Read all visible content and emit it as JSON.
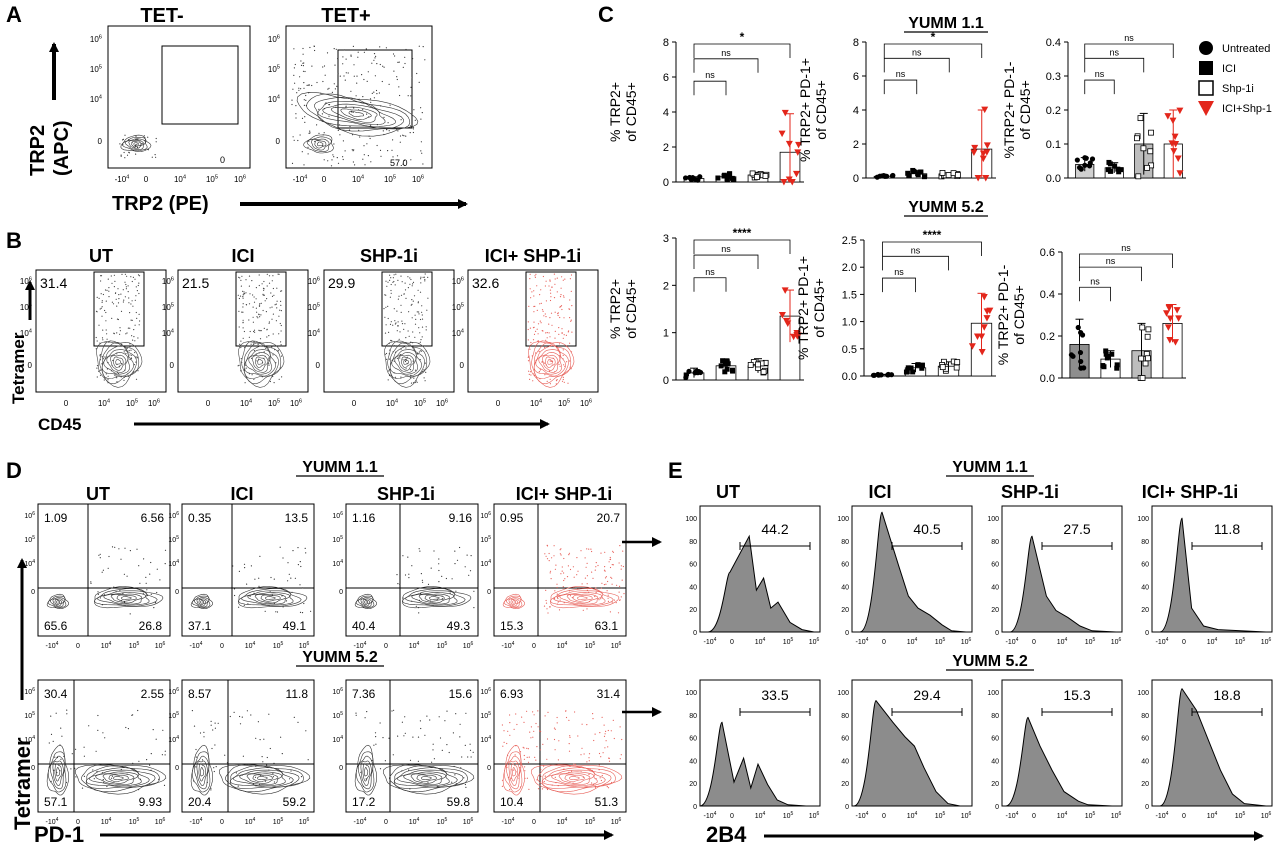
{
  "panel_labels": [
    "A",
    "B",
    "C",
    "D",
    "E"
  ],
  "panelA": {
    "titles": [
      "TET-",
      "TET+"
    ],
    "ylabel_lines": [
      "TRP2",
      "(APC)"
    ],
    "xlabel": "TRP2 (PE)",
    "gate_values": [
      "0",
      "57.0"
    ],
    "yticks": [
      "10^6",
      "10^5",
      "10^4",
      "0"
    ],
    "xticks": [
      "-10^4",
      "0",
      "10^4",
      "10^5",
      "10^6"
    ]
  },
  "panelB": {
    "titles": [
      "UT",
      "ICI",
      "SHP-1i",
      "ICI+ SHP-1i"
    ],
    "values": [
      "31.4",
      "21.5",
      "29.9",
      "32.6"
    ],
    "ylabel": "Tetramer",
    "xlabel": "CD45",
    "yticks": [
      "10^6",
      "10^5",
      "10^4",
      "0"
    ],
    "xticks": [
      "0",
      "10^4",
      "10^5",
      "10^6"
    ]
  },
  "panelC": {
    "section_titles": [
      "YUMM 1.1",
      "YUMM 5.2"
    ],
    "legend": [
      {
        "label": "Untreated",
        "marker": "filled-circle",
        "color": "#000000"
      },
      {
        "label": "ICI",
        "marker": "filled-square",
        "color": "#000000"
      },
      {
        "label": "Shp-1i",
        "marker": "open-square",
        "color": "#000000"
      },
      {
        "label": "ICI+Shp-1",
        "marker": "triangle-down",
        "color": "#e3261b"
      }
    ],
    "chart_data": [
      {
        "type": "bar",
        "section": "YUMM 1.1",
        "ylabel_lines": [
          "% TRP2+",
          "of CD45+"
        ],
        "ylim": [
          0,
          8
        ],
        "yticks": [
          "0",
          "2",
          "4",
          "6",
          "8"
        ],
        "categories": [
          "Untreated",
          "ICI",
          "Shp-1i",
          "ICI+Shp-1"
        ],
        "values": [
          0.2,
          0.3,
          0.4,
          1.7
        ],
        "errors": [
          0.1,
          0.2,
          0.15,
          2.2
        ],
        "significance": [
          "ns",
          "ns",
          "*"
        ]
      },
      {
        "type": "bar",
        "section": "YUMM 1.1",
        "ylabel_lines": [
          "% TRP2+ PD-1+",
          "of CD45+"
        ],
        "ylim": [
          0,
          8
        ],
        "yticks": [
          "0",
          "2",
          "4",
          "6",
          "8"
        ],
        "categories": [
          "Untreated",
          "ICI",
          "Shp-1i",
          "ICI+Shp-1"
        ],
        "values": [
          0.1,
          0.25,
          0.2,
          1.7
        ],
        "errors": [
          0.05,
          0.2,
          0.1,
          2.3
        ],
        "significance": [
          "ns",
          "ns",
          "*"
        ]
      },
      {
        "type": "bar",
        "section": "YUMM 1.1",
        "ylabel_lines": [
          "%TRP2+ PD-1-",
          "of CD45+"
        ],
        "ylim": [
          0,
          0.4
        ],
        "yticks": [
          "0.0",
          "0.1",
          "0.2",
          "0.3",
          "0.4"
        ],
        "categories": [
          "Untreated",
          "ICI",
          "Shp-1i",
          "ICI+Shp-1"
        ],
        "values": [
          0.04,
          0.03,
          0.1,
          0.1
        ],
        "errors": [
          0.02,
          0.015,
          0.09,
          0.1
        ],
        "significance": [
          "ns",
          "ns",
          "ns"
        ]
      },
      {
        "type": "bar",
        "section": "YUMM 5.2",
        "ylabel_lines": [
          "% TRP2+",
          "of CD45+"
        ],
        "ylim": [
          0,
          3
        ],
        "yticks": [
          "0",
          "1",
          "2",
          "3"
        ],
        "categories": [
          "Untreated",
          "ICI",
          "Shp-1i",
          "ICI+Shp-1"
        ],
        "values": [
          0.15,
          0.3,
          0.3,
          1.35
        ],
        "errors": [
          0.1,
          0.12,
          0.15,
          0.55
        ],
        "significance": [
          "ns",
          "ns",
          "****"
        ]
      },
      {
        "type": "bar",
        "section": "YUMM 5.2",
        "ylabel_lines": [
          "% TRP2+ PD-1+",
          "of CD45+"
        ],
        "ylim": [
          0,
          2.5
        ],
        "yticks": [
          "0.0",
          "0.5",
          "1.0",
          "1.5",
          "2.0",
          "2.5"
        ],
        "categories": [
          "Untreated",
          "ICI",
          "Shp-1i",
          "ICI+Shp-1"
        ],
        "values": [
          0.02,
          0.15,
          0.18,
          0.97
        ],
        "errors": [
          0.01,
          0.08,
          0.08,
          0.55
        ],
        "significance": [
          "ns",
          "ns",
          "****"
        ]
      },
      {
        "type": "bar",
        "section": "YUMM 5.2",
        "ylabel_lines": [
          "% TRP2+ PD-1-",
          "of CD45+"
        ],
        "ylim": [
          0,
          0.6
        ],
        "yticks": [
          "0.0",
          "0.2",
          "0.4",
          "0.6"
        ],
        "categories": [
          "Untreated",
          "ICI",
          "Shp-1i",
          "ICI+Shp-1"
        ],
        "values": [
          0.16,
          0.09,
          0.13,
          0.26
        ],
        "errors": [
          0.12,
          0.04,
          0.13,
          0.09
        ],
        "significance": [
          "ns",
          "ns",
          "ns"
        ]
      }
    ]
  },
  "panelD": {
    "titles": [
      "UT",
      "ICI",
      "SHP-1i",
      "ICI+ SHP-1i"
    ],
    "sections": [
      "YUMM 1.1",
      "YUMM 5.2"
    ],
    "quadrants": [
      [
        [
          "1.09",
          "6.56",
          "65.6",
          "26.8"
        ],
        [
          "0.35",
          "13.5",
          "37.1",
          "49.1"
        ],
        [
          "1.16",
          "9.16",
          "40.4",
          "49.3"
        ],
        [
          "0.95",
          "20.7",
          "15.3",
          "63.1"
        ]
      ],
      [
        [
          "30.4",
          "2.55",
          "57.1",
          "9.93"
        ],
        [
          "8.57",
          "11.8",
          "20.4",
          "59.2"
        ],
        [
          "7.36",
          "15.6",
          "17.2",
          "59.8"
        ],
        [
          "6.93",
          "31.4",
          "10.4",
          "51.3"
        ]
      ]
    ],
    "ylabel": "Tetramer",
    "xlabel": "PD-1",
    "yticks": [
      "10^6",
      "10^5",
      "10^4",
      "0"
    ],
    "xticks": [
      "-10^4",
      "0",
      "10^4",
      "10^5",
      "10^6"
    ]
  },
  "panelE": {
    "titles": [
      "UT",
      "ICI",
      "SHP-1i",
      "ICI+ SHP-1i"
    ],
    "sections": [
      "YUMM 1.1",
      "YUMM 5.2"
    ],
    "values": [
      [
        "44.2",
        "40.5",
        "27.5",
        "11.8"
      ],
      [
        "33.5",
        "29.4",
        "15.3",
        "18.8"
      ]
    ],
    "xlabel": "2B4",
    "yticks": [
      "0",
      "20",
      "40",
      "60",
      "80",
      "100"
    ],
    "xticks": [
      "-10^4",
      "0",
      "10^4",
      "10^5",
      "10^6"
    ]
  }
}
